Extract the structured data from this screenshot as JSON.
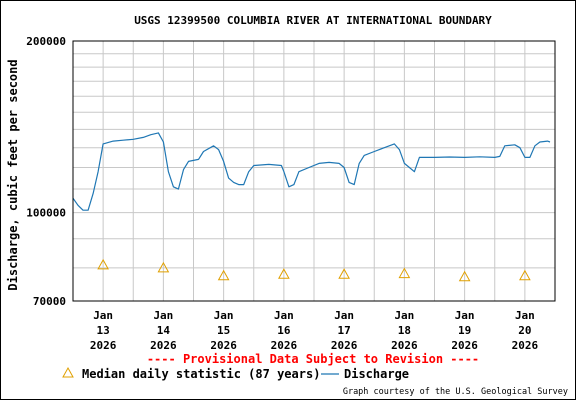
{
  "chart_data": {
    "type": "line",
    "title": "USGS 12399500 COLUMBIA RIVER AT INTERNATIONAL BOUNDARY",
    "ylabel": "Discharge, cubic feet per second",
    "y_scale": "log",
    "ylim": [
      70000,
      200000
    ],
    "y_ticks": [
      {
        "value": 200000,
        "label": "200000"
      },
      {
        "value": 100000,
        "label": "100000"
      },
      {
        "value": 70000,
        "label": "70000"
      }
    ],
    "xlim": [
      "2026-01-12 12:00",
      "2026-01-20 12:00"
    ],
    "x_ticks": [
      {
        "x": "2026-01-13",
        "label": [
          "Jan",
          "13",
          "2026"
        ]
      },
      {
        "x": "2026-01-14",
        "label": [
          "Jan",
          "14",
          "2026"
        ]
      },
      {
        "x": "2026-01-15",
        "label": [
          "Jan",
          "15",
          "2026"
        ]
      },
      {
        "x": "2026-01-16",
        "label": [
          "Jan",
          "16",
          "2026"
        ]
      },
      {
        "x": "2026-01-17",
        "label": [
          "Jan",
          "17",
          "2026"
        ]
      },
      {
        "x": "2026-01-18",
        "label": [
          "Jan",
          "18",
          "2026"
        ]
      },
      {
        "x": "2026-01-19",
        "label": [
          "Jan",
          "19",
          "2026"
        ]
      },
      {
        "x": "2026-01-20",
        "label": [
          "Jan",
          "20",
          "2026"
        ]
      }
    ],
    "grid": true,
    "series": [
      {
        "name": "Discharge",
        "color": "#1f77b4",
        "points": [
          [
            "2026-01-12 12:00",
            106000
          ],
          [
            "2026-01-12 14:00",
            103000
          ],
          [
            "2026-01-12 16:00",
            101000
          ],
          [
            "2026-01-12 18:00",
            101000
          ],
          [
            "2026-01-12 20:00",
            108000
          ],
          [
            "2026-01-12 22:00",
            118000
          ],
          [
            "2026-01-13 00:00",
            132000
          ],
          [
            "2026-01-13 04:00",
            133500
          ],
          [
            "2026-01-13 08:00",
            134000
          ],
          [
            "2026-01-13 12:00",
            134500
          ],
          [
            "2026-01-13 16:00",
            135500
          ],
          [
            "2026-01-13 19:00",
            137000
          ],
          [
            "2026-01-13 22:00",
            138000
          ],
          [
            "2026-01-14 00:00",
            133000
          ],
          [
            "2026-01-14 02:00",
            118000
          ],
          [
            "2026-01-14 04:00",
            111000
          ],
          [
            "2026-01-14 06:00",
            110000
          ],
          [
            "2026-01-14 08:00",
            119000
          ],
          [
            "2026-01-14 10:00",
            123000
          ],
          [
            "2026-01-14 14:00",
            124000
          ],
          [
            "2026-01-14 16:00",
            128000
          ],
          [
            "2026-01-14 20:00",
            131000
          ],
          [
            "2026-01-14 22:00",
            129000
          ],
          [
            "2026-01-15 00:00",
            123000
          ],
          [
            "2026-01-15 02:00",
            115000
          ],
          [
            "2026-01-15 04:00",
            113000
          ],
          [
            "2026-01-15 06:00",
            112000
          ],
          [
            "2026-01-15 08:00",
            112000
          ],
          [
            "2026-01-15 10:00",
            118000
          ],
          [
            "2026-01-15 12:00",
            121000
          ],
          [
            "2026-01-15 18:00",
            121500
          ],
          [
            "2026-01-15 23:00",
            121000
          ],
          [
            "2026-01-16 00:00",
            118000
          ],
          [
            "2026-01-16 02:00",
            111000
          ],
          [
            "2026-01-16 04:00",
            112000
          ],
          [
            "2026-01-16 06:00",
            118000
          ],
          [
            "2026-01-16 10:00",
            120000
          ],
          [
            "2026-01-16 14:00",
            122000
          ],
          [
            "2026-01-16 18:00",
            122500
          ],
          [
            "2026-01-16 22:00",
            122000
          ],
          [
            "2026-01-17 00:00",
            120000
          ],
          [
            "2026-01-17 02:00",
            113000
          ],
          [
            "2026-01-17 04:00",
            112000
          ],
          [
            "2026-01-17 06:00",
            122000
          ],
          [
            "2026-01-17 08:00",
            126000
          ],
          [
            "2026-01-17 12:00",
            128000
          ],
          [
            "2026-01-17 16:00",
            130000
          ],
          [
            "2026-01-17 20:00",
            132000
          ],
          [
            "2026-01-17 22:00",
            129000
          ],
          [
            "2026-01-18 00:00",
            122000
          ],
          [
            "2026-01-18 02:00",
            120000
          ],
          [
            "2026-01-18 04:00",
            118000
          ],
          [
            "2026-01-18 06:00",
            125000
          ],
          [
            "2026-01-18 12:00",
            125000
          ],
          [
            "2026-01-18 18:00",
            125200
          ],
          [
            "2026-01-19 00:00",
            125000
          ],
          [
            "2026-01-19 06:00",
            125300
          ],
          [
            "2026-01-19 12:00",
            125000
          ],
          [
            "2026-01-19 14:00",
            125500
          ],
          [
            "2026-01-19 16:00",
            131000
          ],
          [
            "2026-01-19 20:00",
            131500
          ],
          [
            "2026-01-19 22:00",
            130000
          ],
          [
            "2026-01-20 00:00",
            125000
          ],
          [
            "2026-01-20 02:00",
            125000
          ],
          [
            "2026-01-20 04:00",
            131000
          ],
          [
            "2026-01-20 06:00",
            133000
          ],
          [
            "2026-01-20 09:00",
            133500
          ],
          [
            "2026-01-20 10:00",
            133000
          ]
        ]
      },
      {
        "name": "Median daily statistic (87 years)",
        "color": "#e0a000",
        "marker": "triangle",
        "points": [
          [
            "2026-01-13",
            81000
          ],
          [
            "2026-01-14",
            80000
          ],
          [
            "2026-01-15",
            77500
          ],
          [
            "2026-01-16",
            78000
          ],
          [
            "2026-01-17",
            78000
          ],
          [
            "2026-01-18",
            78200
          ],
          [
            "2026-01-19",
            77200
          ],
          [
            "2026-01-20",
            77500
          ]
        ]
      }
    ],
    "legend": {
      "position": "bottom-left",
      "entries": [
        {
          "label": "Median daily statistic (87 years)",
          "series": "Median daily statistic (87 years)"
        },
        {
          "label": "Discharge",
          "series": "Discharge"
        }
      ]
    },
    "annotations": [
      {
        "text": "---- Provisional Data Subject to Revision ----",
        "color": "#ff0000"
      },
      {
        "text": "Graph courtesy of the U.S. Geological Survey",
        "color": "#000000"
      }
    ]
  }
}
